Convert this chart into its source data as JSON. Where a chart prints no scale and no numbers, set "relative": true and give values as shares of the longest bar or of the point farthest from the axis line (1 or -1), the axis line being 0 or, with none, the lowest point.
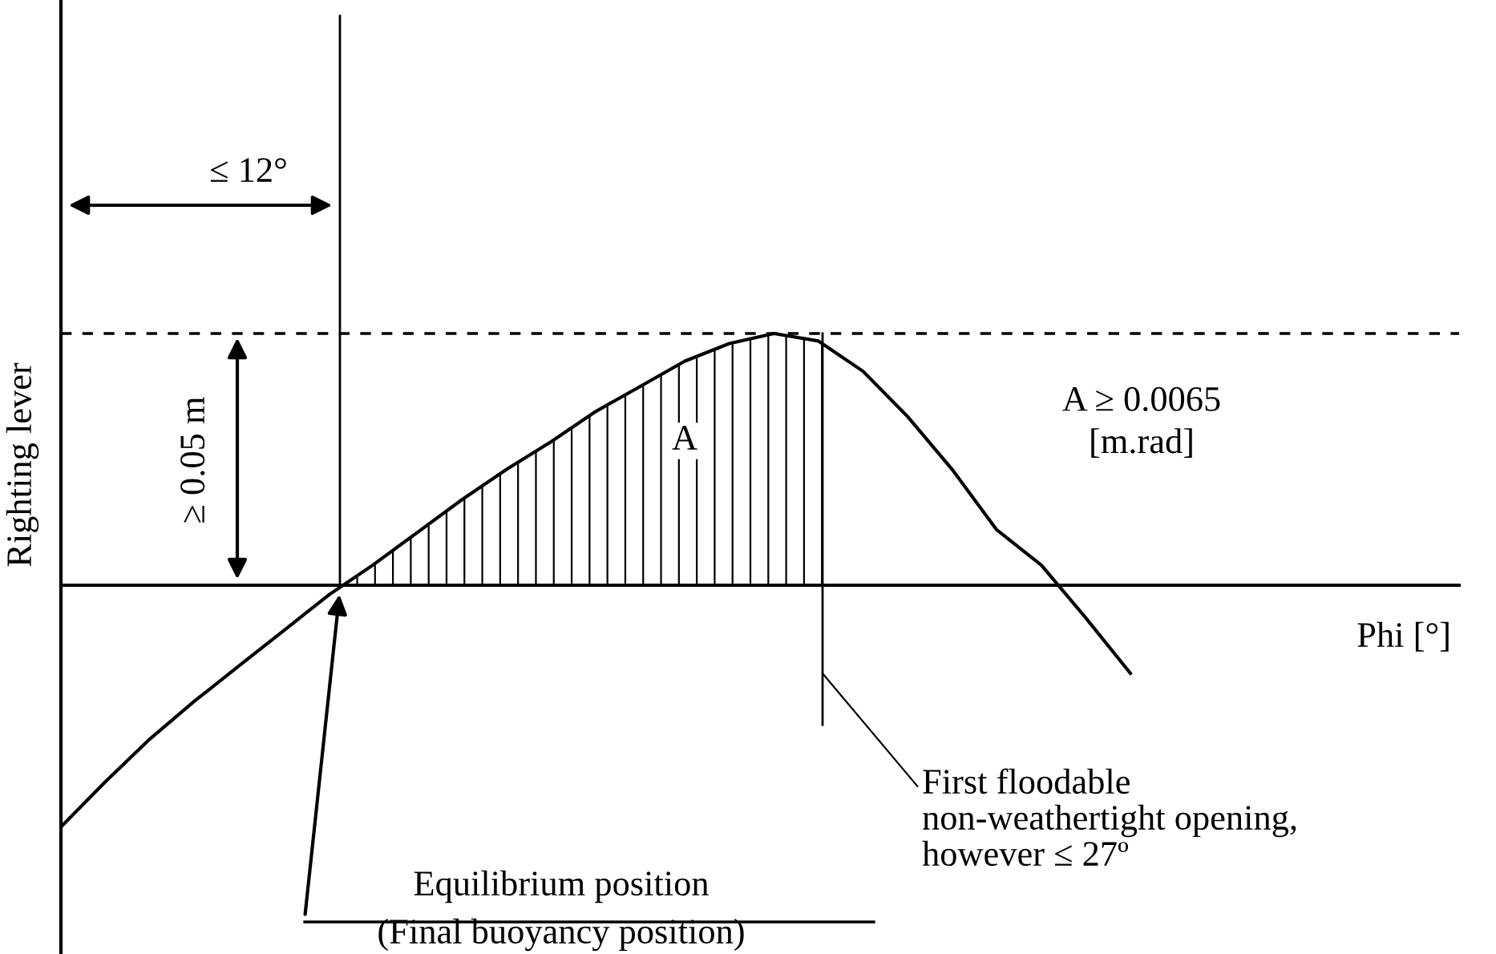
{
  "chart_data": {
    "type": "line",
    "relative": true,
    "ylabel": "Righting lever",
    "categories": [
      null,
      null,
      null,
      null,
      null,
      null,
      null,
      null,
      null,
      null,
      null,
      null,
      null,
      null,
      null,
      null,
      null,
      null,
      null,
      null,
      null,
      null,
      null,
      null,
      null
    ],
    "series": [
      {
        "color": "#000000",
        "values": [
          -0.96,
          -0.78,
          -0.61,
          -0.46,
          -0.32,
          -0.18,
          -0.04,
          0.08,
          0.21,
          0.34,
          0.46,
          0.57,
          0.69,
          0.79,
          0.89,
          0.96,
          1.0,
          0.97,
          0.85,
          0.67,
          0.46,
          0.22,
          0.08,
          -0.13,
          -0.35
        ]
      }
    ],
    "ref_lines": [
      {
        "axis": "y",
        "value": 1.0,
        "line_style": "dashed",
        "color": "#000000"
      }
    ],
    "annotations": [
      "≤ 12°",
      "≥ 0.05 m",
      "A",
      "A ≥ 0.0065\n[m.rad]",
      "Phi [°]",
      "First floodable\nnon-weathertight opening,\nhowever ≤ 27º",
      "Equilibrium position",
      "(Final buoyancy position)"
    ]
  }
}
